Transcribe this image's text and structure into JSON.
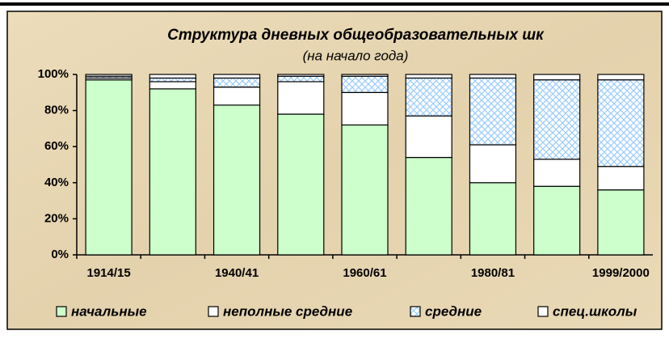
{
  "chart_data": {
    "type": "stacked_bar",
    "title": "Структура дневных общеобразовательных шк",
    "subtitle": "(на начало года)",
    "categories": [
      "1914/15",
      null,
      "1940/41",
      null,
      "1960/61",
      null,
      "1980/81",
      null,
      "1999/2000"
    ],
    "series": [
      {
        "name": "начальные",
        "color": "#ccffcc",
        "values": [
          97,
          92,
          83,
          78,
          72,
          54,
          40,
          38,
          36
        ]
      },
      {
        "name": "неполные средние",
        "color": "#ffffff",
        "values": [
          1,
          4,
          10,
          18,
          18,
          23,
          21,
          15,
          13
        ]
      },
      {
        "name": "средние",
        "color": "#99ccff",
        "hatch": true,
        "values": [
          1,
          2,
          5,
          3,
          9,
          21,
          37,
          44,
          48
        ]
      },
      {
        "name": "спец.школы",
        "color": "#ffffff",
        "values": [
          1,
          2,
          2,
          1,
          1,
          2,
          2,
          3,
          3
        ]
      }
    ],
    "ylim": [
      0,
      100
    ],
    "yticks": [
      {
        "value": 0,
        "label": "0%"
      },
      {
        "value": 20,
        "label": "20%"
      },
      {
        "value": 40,
        "label": "40%"
      },
      {
        "value": 60,
        "label": "60%"
      },
      {
        "value": 80,
        "label": "80%"
      },
      {
        "value": 100,
        "label": "100%"
      }
    ]
  }
}
